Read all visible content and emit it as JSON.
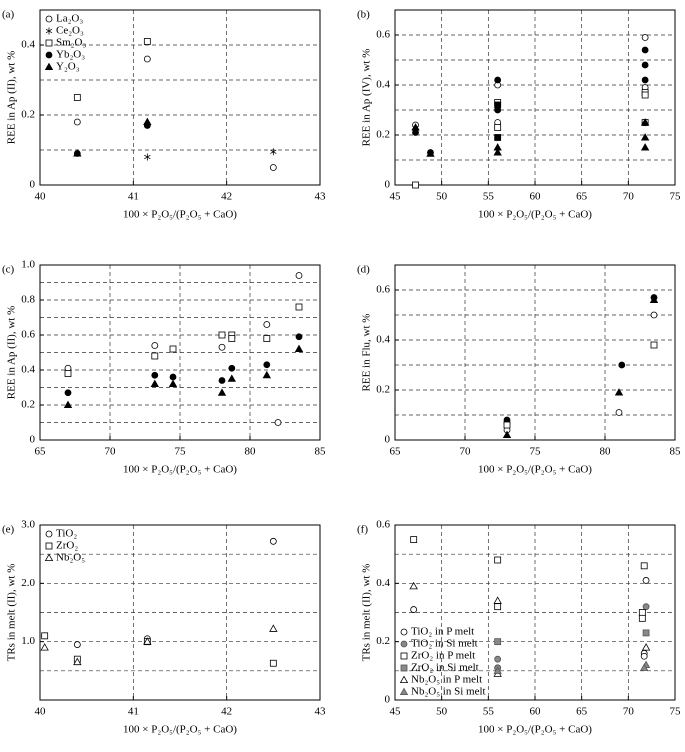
{
  "chart_data": [
    {
      "type": "scatter",
      "label": "(a)",
      "xlabel": "100 × P₂O₅/(P₂O₅ + CaO)",
      "ylabel": "REE in Ap (II), wt %",
      "xlim": [
        40,
        43
      ],
      "xticks": [
        40,
        41,
        42,
        43
      ],
      "ylim": [
        0,
        0.5
      ],
      "yticks": [
        0,
        0.2,
        0.4
      ],
      "ygrid": [
        0.1,
        0.2,
        0.3,
        0.4,
        0.5
      ],
      "legend": "upper left",
      "series": [
        {
          "name": "La₂O₃",
          "marker": "circle",
          "color": "none",
          "x": [
            40.4,
            41.15,
            42.5
          ],
          "values": [
            0.18,
            0.36,
            0.05
          ]
        },
        {
          "name": "Ce₂O₃",
          "marker": "asterisk",
          "color": "#000000",
          "x": [
            41.15,
            42.5
          ],
          "values": [
            0.08,
            0.095
          ]
        },
        {
          "name": "Sm₂O₃",
          "marker": "square",
          "color": "none",
          "x": [
            40.4,
            41.15
          ],
          "values": [
            0.25,
            0.41
          ]
        },
        {
          "name": "Yb₂O₃",
          "marker": "circle",
          "color": "#000000",
          "x": [
            40.4,
            41.15
          ],
          "values": [
            0.09,
            0.17
          ]
        },
        {
          "name": "Y₂O₃",
          "marker": "triangle",
          "color": "#000000",
          "x": [
            40.4,
            41.15
          ],
          "values": [
            0.09,
            0.18
          ]
        }
      ]
    },
    {
      "type": "scatter",
      "label": "(b)",
      "xlabel": "100 × P₂O₅/(P₂O₅ + CaO)",
      "ylabel": "REE in Ap (IV), wt %",
      "xlim": [
        45,
        75
      ],
      "xticks": [
        45,
        50,
        55,
        60,
        65,
        70,
        75
      ],
      "ylim": [
        0,
        0.7
      ],
      "yticks": [
        0,
        0.2,
        0.4,
        0.6
      ],
      "ygrid": [
        0.1,
        0.2,
        0.3,
        0.4,
        0.5,
        0.6,
        0.7
      ],
      "series": [
        {
          "marker": "circle",
          "color": "none",
          "x": [
            47.2,
            56,
            56,
            71.8,
            71.8
          ],
          "values": [
            0.24,
            0.4,
            0.25,
            0.59,
            0.39
          ]
        },
        {
          "marker": "circle",
          "color": "#000000",
          "x": [
            47.2,
            48.8,
            56,
            56,
            71.8,
            71.8,
            71.8,
            71.8
          ],
          "values": [
            0.21,
            0.13,
            0.42,
            0.3,
            0.54,
            0.48,
            0.42,
            0.25
          ]
        },
        {
          "marker": "square",
          "color": "none",
          "x": [
            47.2,
            56,
            56,
            71.8,
            71.8,
            71.8
          ],
          "values": [
            0,
            0.33,
            0.23,
            0.37,
            0.36,
            0.25
          ]
        },
        {
          "marker": "square",
          "color": "#000000",
          "x": [
            56,
            56
          ],
          "values": [
            0.32,
            0.19
          ]
        },
        {
          "marker": "triangle",
          "color": "#000000",
          "x": [
            47.2,
            48.8,
            56,
            56,
            71.8,
            71.8,
            71.8
          ],
          "values": [
            0.23,
            0.125,
            0.15,
            0.13,
            0.25,
            0.19,
            0.15
          ]
        }
      ]
    },
    {
      "type": "scatter",
      "label": "(c)",
      "xlabel": "100 × P₂O₅/(P₂O₅ + CaO)",
      "ylabel": "REE in Ap (II), wt %",
      "xlim": [
        65,
        85
      ],
      "xticks": [
        65,
        70,
        75,
        80,
        85
      ],
      "ylim": [
        0,
        1
      ],
      "yticks": [
        0,
        0.2,
        0.4,
        0.6,
        0.8,
        {
          "value": 1,
          "label": "1.0"
        }
      ],
      "ygrid": [
        0.1,
        0.2,
        0.3,
        0.4,
        0.5,
        0.6,
        0.7,
        0.8,
        0.9
      ],
      "series": [
        {
          "marker": "circle",
          "color": "none",
          "x": [
            67,
            73.2,
            78,
            81.2,
            82,
            83.5
          ],
          "values": [
            0.41,
            0.54,
            0.53,
            0.66,
            0.1,
            0.94
          ]
        },
        {
          "marker": "square",
          "color": "none",
          "x": [
            67,
            73.2,
            74.5,
            78,
            78.7,
            78.7,
            81.2,
            83.5
          ],
          "values": [
            0.38,
            0.48,
            0.52,
            0.6,
            0.6,
            0.58,
            0.58,
            0.76
          ]
        },
        {
          "marker": "circle",
          "color": "#000000",
          "x": [
            67,
            73.2,
            74.5,
            78,
            78.7,
            81.2,
            83.5
          ],
          "values": [
            0.27,
            0.37,
            0.36,
            0.34,
            0.41,
            0.43,
            0.59
          ]
        },
        {
          "marker": "triangle",
          "color": "#000000",
          "x": [
            67,
            73.2,
            74.5,
            78,
            78.7,
            81.2,
            83.5
          ],
          "values": [
            0.2,
            0.32,
            0.32,
            0.27,
            0.35,
            0.37,
            0.52
          ]
        }
      ]
    },
    {
      "type": "scatter",
      "label": "(d)",
      "xlabel": "100 × P₂O₅/(P₂O₅ + CaO)",
      "ylabel": "REE in Flu, wt %",
      "xlim": [
        65,
        85
      ],
      "xticks": [
        65,
        70,
        75,
        80,
        85
      ],
      "ylim": [
        0,
        0.7
      ],
      "yticks": [
        0,
        0.2,
        0.4,
        0.6
      ],
      "ygrid": [
        0.1,
        0.2,
        0.3,
        0.4,
        0.5,
        0.6,
        0.7
      ],
      "series": [
        {
          "marker": "circle",
          "color": "none",
          "x": [
            73,
            73,
            81,
            83.5
          ],
          "values": [
            0.07,
            0.04,
            0.11,
            0.5
          ]
        },
        {
          "marker": "circle",
          "color": "#000000",
          "x": [
            73,
            81.2,
            83.5
          ],
          "values": [
            0.08,
            0.3,
            0.57
          ]
        },
        {
          "marker": "triangle",
          "color": "#000000",
          "x": [
            73,
            81,
            83.5
          ],
          "values": [
            0.02,
            0.19,
            0.56
          ]
        },
        {
          "marker": "square",
          "color": "none",
          "x": [
            73,
            83.5
          ],
          "values": [
            0.06,
            0.38
          ]
        }
      ]
    },
    {
      "type": "scatter",
      "label": "(e)",
      "xlabel": "100 × P₂O₅/(P₂O₅ + CaO)",
      "ylabel": "TRs in melt (II), wt %",
      "xlim": [
        40,
        43
      ],
      "xticks": [
        40,
        41,
        42,
        43
      ],
      "ylim": [
        0,
        3
      ],
      "yticks": [
        {
          "value": 1,
          "label": "1.0"
        },
        {
          "value": 2,
          "label": "2.0"
        },
        {
          "value": 3,
          "label": "3.0"
        }
      ],
      "ygrid": [
        0.5,
        1,
        1.5,
        2,
        2.5
      ],
      "legend": "upper left",
      "series": [
        {
          "name": "TiO₂",
          "marker": "circle",
          "color": "none",
          "x": [
            40.05,
            40.4,
            41.15,
            42.5
          ],
          "values": [
            1.1,
            0.95,
            1.05,
            2.72
          ]
        },
        {
          "name": "ZrO₂",
          "marker": "square",
          "color": "none",
          "x": [
            40.05,
            40.4,
            41.15,
            42.5
          ],
          "values": [
            1.1,
            0.7,
            1,
            0.63
          ]
        },
        {
          "name": "Nb₂O₅",
          "marker": "triangle",
          "color": "none",
          "x": [
            40.05,
            40.4,
            41.15,
            42.5
          ],
          "values": [
            0.9,
            0.65,
            1,
            1.22
          ]
        }
      ]
    },
    {
      "type": "scatter",
      "label": "(f)",
      "xlabel": "100 × P₂O₅/(P₂O₅ + CaO)",
      "ylabel": "TRs in melt (II), wt %",
      "xlim": [
        45,
        75
      ],
      "xticks": [
        45,
        50,
        55,
        60,
        65,
        70,
        75
      ],
      "ylim": [
        0,
        0.6
      ],
      "yticks": [
        0,
        0.2,
        0.4,
        0.6
      ],
      "ygrid": [
        0.1,
        0.2,
        0.3,
        0.4,
        0.5
      ],
      "legend": "lower left",
      "series": [
        {
          "name": "TiO₂ in P melt",
          "marker": "circle",
          "color": "none",
          "x": [
            47,
            56,
            71.9,
            71.7,
            71.7
          ],
          "values": [
            0.31,
            0.11,
            0.41,
            0.16,
            0.15
          ]
        },
        {
          "name": "TiO₂ in Si melt",
          "marker": "circle",
          "color": "#888888",
          "x": [
            56,
            56,
            71.9
          ],
          "values": [
            0.14,
            0.11,
            0.32
          ]
        },
        {
          "name": "ZrO₂ in P melt",
          "marker": "square",
          "color": "none",
          "x": [
            47,
            56,
            56,
            71.7,
            71.5,
            71.5
          ],
          "values": [
            0.55,
            0.48,
            0.32,
            0.46,
            0.3,
            0.28
          ]
        },
        {
          "name": "ZrO₂ in Si melt",
          "marker": "square",
          "color": "#888888",
          "x": [
            56,
            71.9
          ],
          "values": [
            0.2,
            0.23
          ]
        },
        {
          "name": "Nb₂O₅ in P melt",
          "marker": "triangle",
          "color": "none",
          "x": [
            47,
            56,
            56,
            71.9
          ],
          "values": [
            0.39,
            0.34,
            0.09,
            0.18
          ]
        },
        {
          "name": "Nb₂O₅ in Si melt",
          "marker": "triangle",
          "color": "#888888",
          "x": [
            56,
            71.9,
            71.7
          ],
          "values": [
            0.1,
            0.12,
            0.11
          ]
        }
      ]
    }
  ]
}
